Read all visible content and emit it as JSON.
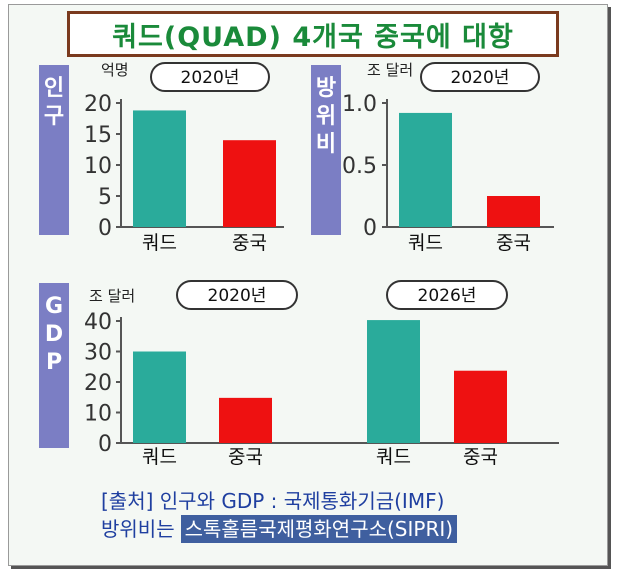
{
  "title": "쿼드(QUAD) 4개국 중국에 대항",
  "colors": {
    "quad": "#2aab9b",
    "china": "#ee1111",
    "axis": "#555555",
    "side_bar": "#7b7ec4",
    "title_border": "#7a3a1e",
    "title_text": "#1a8a3a",
    "source_text": "#1f3fa0"
  },
  "chart_data": [
    {
      "type": "bar",
      "side_label": "인구",
      "unit": "억명",
      "year_label": "2020년",
      "categories": [
        "쿼드",
        "중국"
      ],
      "values": [
        18.8,
        14.0
      ],
      "ylim": [
        0,
        20
      ],
      "yticks": [
        "0",
        "5",
        "10",
        "15",
        "20"
      ]
    },
    {
      "type": "bar",
      "side_label": "방위비",
      "unit": "조 달러",
      "year_label": "2020년",
      "categories": [
        "쿼드",
        "중국"
      ],
      "values": [
        0.92,
        0.25
      ],
      "ylim": [
        0,
        1.0
      ],
      "yticks": [
        "0",
        "0.5",
        "1.0"
      ]
    },
    {
      "type": "bar",
      "side_label": "GDP",
      "unit": "조 달러",
      "groups": [
        {
          "year_label": "2020년",
          "categories": [
            "쿼드",
            "중국"
          ],
          "values": [
            30,
            14.8
          ]
        },
        {
          "year_label": "2026년",
          "categories": [
            "쿼드",
            "중국"
          ],
          "values": [
            40.3,
            23.7
          ]
        }
      ],
      "ylim": [
        0,
        40
      ],
      "yticks": [
        "0",
        "10",
        "20",
        "30",
        "40"
      ]
    }
  ],
  "source": {
    "line1": "[출처] 인구와 GDP : 국제통화기금(IMF)",
    "line2_prefix": "방위비는",
    "line2_highlight": "스톡홀름국제평화연구소(SIPRI)"
  }
}
